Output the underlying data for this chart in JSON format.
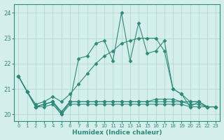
{
  "x": [
    0,
    1,
    2,
    3,
    4,
    5,
    6,
    7,
    8,
    9,
    10,
    11,
    12,
    13,
    14,
    15,
    16,
    17,
    18,
    19,
    20,
    21,
    22,
    23
  ],
  "line_main": [
    21.5,
    20.9,
    20.3,
    20.4,
    20.5,
    20.0,
    20.5,
    22.2,
    22.3,
    22.8,
    22.9,
    22.1,
    24.0,
    22.1,
    23.6,
    22.4,
    22.5,
    22.9,
    21.0,
    20.8,
    20.3,
    20.5,
    20.3,
    20.3
  ],
  "line_rising": [
    21.5,
    20.9,
    20.4,
    20.5,
    20.7,
    20.5,
    20.8,
    21.2,
    21.6,
    22.0,
    22.3,
    22.5,
    22.8,
    22.9,
    23.0,
    23.0,
    23.0,
    22.5,
    21.0,
    20.8,
    20.5,
    20.5,
    20.3,
    20.3
  ],
  "line_flat1": [
    21.5,
    20.9,
    20.3,
    20.3,
    20.4,
    20.0,
    20.4,
    20.4,
    20.4,
    20.4,
    20.4,
    20.4,
    20.4,
    20.4,
    20.4,
    20.4,
    20.4,
    20.4,
    20.4,
    20.4,
    20.3,
    20.3,
    20.3,
    20.3
  ],
  "line_flat2": [
    21.5,
    20.9,
    20.3,
    20.4,
    20.5,
    20.1,
    20.5,
    20.5,
    20.5,
    20.5,
    20.5,
    20.5,
    20.5,
    20.5,
    20.5,
    20.5,
    20.5,
    20.5,
    20.5,
    20.5,
    20.4,
    20.4,
    20.3,
    20.3
  ],
  "line_flat3": [
    21.5,
    20.9,
    20.3,
    20.4,
    20.5,
    20.1,
    20.5,
    20.5,
    20.5,
    20.5,
    20.5,
    20.5,
    20.5,
    20.5,
    20.5,
    20.5,
    20.6,
    20.6,
    20.6,
    20.5,
    20.5,
    20.5,
    20.3,
    20.3
  ],
  "color": "#2e8b7a",
  "bg_color": "#d4eeeb",
  "grid_color": "#aed4d0",
  "xlabel": "Humidex (Indice chaleur)",
  "ylim": [
    19.75,
    24.35
  ],
  "yticks": [
    20,
    21,
    22,
    23,
    24
  ],
  "xticks": [
    0,
    1,
    2,
    3,
    4,
    5,
    6,
    7,
    8,
    9,
    10,
    11,
    12,
    13,
    14,
    15,
    16,
    17,
    18,
    19,
    20,
    21,
    22,
    23
  ],
  "markersize": 2.5,
  "linewidth": 0.8
}
